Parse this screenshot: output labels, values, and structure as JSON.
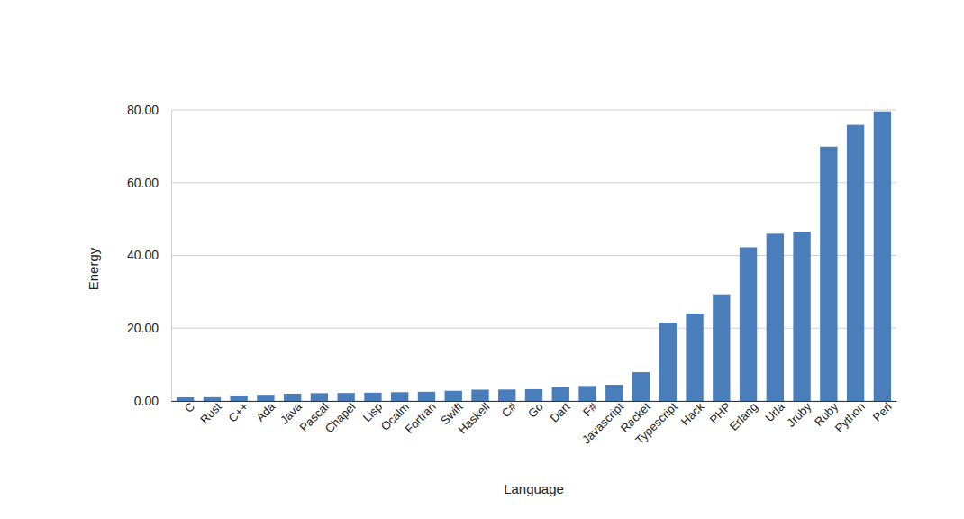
{
  "chart_data": {
    "type": "bar",
    "x_label": "Language",
    "y_label": "Energy",
    "categories": [
      "C",
      "Rust",
      "C++",
      "Ada",
      "Java",
      "Pascal",
      "Chapel",
      "Lisp",
      "Ocalm",
      "Fortran",
      "Swift",
      "Haskell",
      "C#",
      "Go",
      "Dart",
      "F#",
      "Javascript",
      "Racket",
      "Typescript",
      "Hack",
      "PHP",
      "Erlang",
      "Urla",
      "Jruby",
      "Ruby",
      "Python",
      "Perl"
    ],
    "values": [
      1.0,
      1.03,
      1.34,
      1.7,
      1.98,
      2.14,
      2.18,
      2.27,
      2.4,
      2.52,
      2.79,
      3.1,
      3.14,
      3.23,
      3.83,
      4.13,
      4.45,
      7.91,
      21.5,
      24.02,
      29.3,
      42.23,
      45.98,
      46.54,
      69.91,
      75.88,
      79.58
    ],
    "color": "#4a7ebb",
    "ylim": [
      0,
      80
    ],
    "yticks": [
      {
        "value": 0,
        "label": "0.00"
      },
      {
        "value": 20,
        "label": "20.00"
      },
      {
        "value": 40,
        "label": "40.00"
      },
      {
        "value": 60,
        "label": "60.00"
      },
      {
        "value": 80,
        "label": "80.00"
      }
    ],
    "grid": true
  }
}
